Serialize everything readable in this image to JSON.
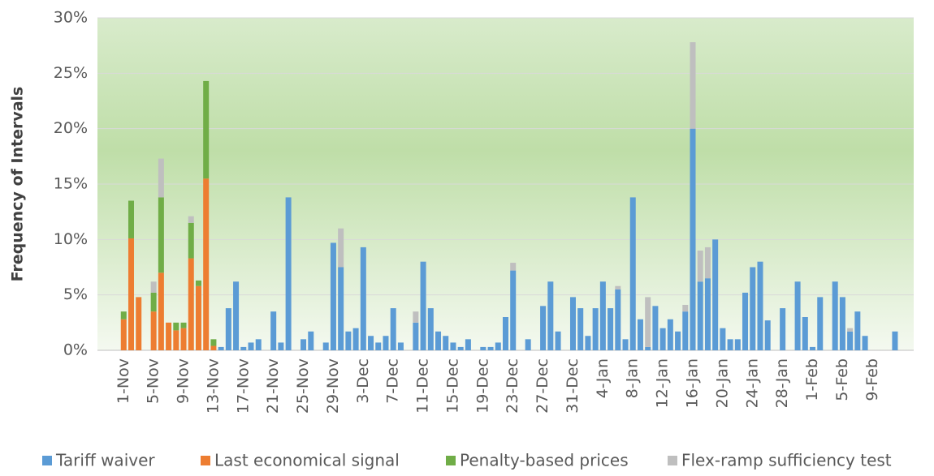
{
  "chart_data": {
    "type": "stacked-bar",
    "y_label": "Frequency of Intervals",
    "categories": [
      null,
      null,
      null,
      "1-Nov",
      null,
      null,
      null,
      "5-Nov",
      null,
      null,
      null,
      "9-Nov",
      null,
      null,
      null,
      "13-Nov",
      null,
      null,
      null,
      "17-Nov",
      null,
      null,
      null,
      "21-Nov",
      null,
      null,
      null,
      "25-Nov",
      null,
      null,
      null,
      "29-Nov",
      null,
      null,
      null,
      "3-Dec",
      null,
      null,
      null,
      "7-Dec",
      null,
      null,
      null,
      "11-Dec",
      null,
      null,
      null,
      "15-Dec",
      null,
      null,
      null,
      "19-Dec",
      null,
      null,
      null,
      "23-Dec",
      null,
      null,
      null,
      "27-Dec",
      null,
      null,
      null,
      "31-Dec",
      null,
      null,
      null,
      "4-Jan",
      null,
      null,
      null,
      "8-Jan",
      null,
      null,
      null,
      "12-Jan",
      null,
      null,
      null,
      "16-Jan",
      null,
      null,
      null,
      "20-Jan",
      null,
      null,
      null,
      "24-Jan",
      null,
      null,
      null,
      "28-Jan",
      null,
      null,
      null,
      "1-Feb",
      null,
      null,
      null,
      "5-Feb",
      null,
      null,
      null,
      "9-Feb",
      null,
      null,
      null,
      null,
      null
    ],
    "series": [
      {
        "name": "Tariff waiver",
        "color": "#5b9bd5",
        "values": [
          0,
          0,
          0,
          0,
          0,
          0,
          0,
          0,
          0,
          0,
          0,
          0,
          0,
          0,
          0,
          0,
          0.3,
          3.8,
          6.2,
          0.3,
          0.7,
          1.0,
          0,
          3.5,
          0.7,
          13.8,
          0,
          1.0,
          1.7,
          0,
          0.7,
          9.7,
          7.5,
          1.7,
          2.0,
          9.3,
          1.3,
          0.7,
          1.3,
          3.8,
          0.7,
          0,
          2.5,
          8.0,
          3.8,
          1.7,
          1.3,
          0.7,
          0.3,
          1.0,
          0,
          0.3,
          0.3,
          0.7,
          3.0,
          7.2,
          0,
          1.0,
          0,
          4.0,
          6.2,
          1.7,
          0,
          4.8,
          3.8,
          1.3,
          3.8,
          6.2,
          3.8,
          5.5,
          1.0,
          13.8,
          2.8,
          0.3,
          4.0,
          2.0,
          2.8,
          1.7,
          3.5,
          20.0,
          6.2,
          6.5,
          10.0,
          2.0,
          1.0,
          1.0,
          5.2,
          7.5,
          8.0,
          2.7,
          0,
          3.8,
          0,
          6.2,
          3.0,
          0.3,
          4.8,
          0,
          6.2,
          4.8,
          1.7,
          3.5,
          1.3,
          0,
          0,
          0,
          1.7,
          0,
          0
        ]
      },
      {
        "name": "Last economical signal",
        "color": "#ed7d31",
        "values": [
          0,
          0,
          0,
          2.8,
          10.1,
          4.8,
          0,
          3.5,
          7.0,
          2.5,
          1.8,
          2.0,
          8.3,
          5.8,
          15.5,
          0.4,
          0,
          0,
          0,
          0,
          0,
          0,
          0,
          0,
          0,
          0,
          0,
          0,
          0,
          0,
          0,
          0,
          0,
          0,
          0,
          0,
          0,
          0,
          0,
          0,
          0,
          0,
          0,
          0,
          0,
          0,
          0,
          0,
          0,
          0,
          0,
          0,
          0,
          0,
          0,
          0,
          0,
          0,
          0,
          0,
          0,
          0,
          0,
          0,
          0,
          0,
          0,
          0,
          0,
          0,
          0,
          0,
          0,
          0,
          0,
          0,
          0,
          0,
          0,
          0,
          0,
          0,
          0,
          0,
          0,
          0,
          0,
          0,
          0,
          0,
          0,
          0,
          0,
          0,
          0,
          0,
          0,
          0,
          0,
          0,
          0,
          0,
          0,
          0,
          0,
          0,
          0,
          0,
          0
        ]
      },
      {
        "name": "Penalty-based prices",
        "color": "#70ad47",
        "values": [
          0,
          0,
          0,
          0.7,
          3.4,
          0,
          0,
          1.7,
          6.8,
          0,
          0.7,
          0.5,
          3.2,
          0.5,
          8.8,
          0.6,
          0,
          0,
          0,
          0,
          0,
          0,
          0,
          0,
          0,
          0,
          0,
          0,
          0,
          0,
          0,
          0,
          0,
          0,
          0,
          0,
          0,
          0,
          0,
          0,
          0,
          0,
          0,
          0,
          0,
          0,
          0,
          0,
          0,
          0,
          0,
          0,
          0,
          0,
          0,
          0,
          0,
          0,
          0,
          0,
          0,
          0,
          0,
          0,
          0,
          0,
          0,
          0,
          0,
          0,
          0,
          0,
          0,
          0,
          0,
          0,
          0,
          0,
          0,
          0,
          0,
          0,
          0,
          0,
          0,
          0,
          0,
          0,
          0,
          0,
          0,
          0,
          0,
          0,
          0,
          0,
          0,
          0,
          0,
          0,
          0,
          0,
          0,
          0,
          0,
          0,
          0,
          0,
          0
        ]
      },
      {
        "name": "Flex-ramp sufficiency test",
        "color": "#bfbfbf",
        "values": [
          0,
          0,
          0,
          0,
          0,
          0,
          0,
          1.0,
          3.5,
          0,
          0,
          0,
          0.6,
          0,
          0,
          0,
          0,
          0,
          0,
          0,
          0,
          0,
          0,
          0,
          0,
          0,
          0,
          0,
          0,
          0,
          0,
          0,
          3.5,
          0,
          0,
          0,
          0,
          0,
          0,
          0,
          0,
          0,
          1.0,
          0,
          0,
          0,
          0,
          0,
          0,
          0,
          0,
          0,
          0,
          0,
          0,
          0.7,
          0,
          0,
          0,
          0,
          0,
          0,
          0,
          0,
          0,
          0,
          0,
          0,
          0,
          0.3,
          0,
          0,
          0,
          4.5,
          0,
          0,
          0,
          0,
          0.6,
          7.8,
          2.8,
          2.8,
          0,
          0,
          0,
          0,
          0,
          0,
          0,
          0,
          0,
          0,
          0,
          0,
          0,
          0,
          0,
          0,
          0,
          0,
          0.3,
          0,
          0,
          0,
          0,
          0,
          0,
          0,
          0
        ]
      }
    ],
    "ylim": [
      0,
      30
    ],
    "yticks": [
      {
        "value": 0,
        "label": "0%"
      },
      {
        "value": 5,
        "label": "5%"
      },
      {
        "value": 10,
        "label": "10%"
      },
      {
        "value": 15,
        "label": "15%"
      },
      {
        "value": 20,
        "label": "20%"
      },
      {
        "value": 25,
        "label": "25%"
      },
      {
        "value": 30,
        "label": "30%"
      }
    ],
    "grid": true,
    "legend": "bottom"
  }
}
